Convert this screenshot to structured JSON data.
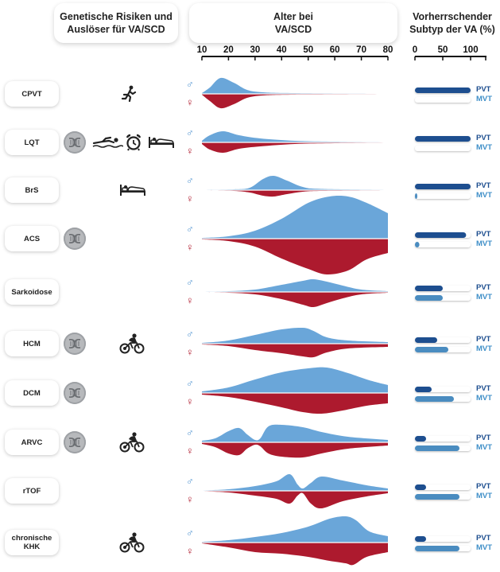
{
  "headers": {
    "risks": "Genetische Risiken und\nAuslöser für VA/SCD",
    "age": "Alter bei\nVA/SCD",
    "subtype": "Vorherrschender\nSubtyp der VA (%)"
  },
  "age_axis": {
    "ticks": [
      10,
      20,
      30,
      40,
      50,
      60,
      70,
      80
    ],
    "min": 10,
    "max": 80
  },
  "pct_axis": {
    "ticks": [
      0,
      50,
      100
    ],
    "min": 0,
    "max": 100
  },
  "symbols": {
    "male": "♂",
    "female": "♀"
  },
  "bar_labels": {
    "pvt": "PVT",
    "mvt": "MVT"
  },
  "colors": {
    "male": "#6aa6d9",
    "female": "#ad1a2e",
    "pvt": "#1d4e8f",
    "mvt": "#4a8cc0",
    "track": "#ffffff"
  },
  "diseases": [
    {
      "name": "CPVT",
      "genetic": false,
      "triggers": [
        "running-icon"
      ],
      "pvt": 100,
      "mvt": 0
    },
    {
      "name": "LQT",
      "genetic": true,
      "triggers": [
        "swimming-icon",
        "alarm-clock-icon",
        "bed-icon"
      ],
      "pvt": 100,
      "mvt": 0
    },
    {
      "name": "BrS",
      "genetic": false,
      "triggers": [
        "bed-icon"
      ],
      "pvt": 100,
      "mvt": 3
    },
    {
      "name": "ACS",
      "genetic": true,
      "triggers": [],
      "pvt": 92,
      "mvt": 8
    },
    {
      "name": "Sarkoidose",
      "genetic": false,
      "triggers": [],
      "pvt": 50,
      "mvt": 50
    },
    {
      "name": "HCM",
      "genetic": true,
      "triggers": [
        "cycling-icon"
      ],
      "pvt": 40,
      "mvt": 60
    },
    {
      "name": "DCM",
      "genetic": true,
      "triggers": [],
      "pvt": 30,
      "mvt": 70
    },
    {
      "name": "ARVC",
      "genetic": true,
      "triggers": [
        "cycling-icon"
      ],
      "pvt": 20,
      "mvt": 80
    },
    {
      "name": "rTOF",
      "genetic": false,
      "triggers": [],
      "pvt": 20,
      "mvt": 80
    },
    {
      "name": "chronische\nKHK",
      "genetic": false,
      "triggers": [
        "cycling-icon"
      ],
      "pvt": 20,
      "mvt": 80
    }
  ]
}
